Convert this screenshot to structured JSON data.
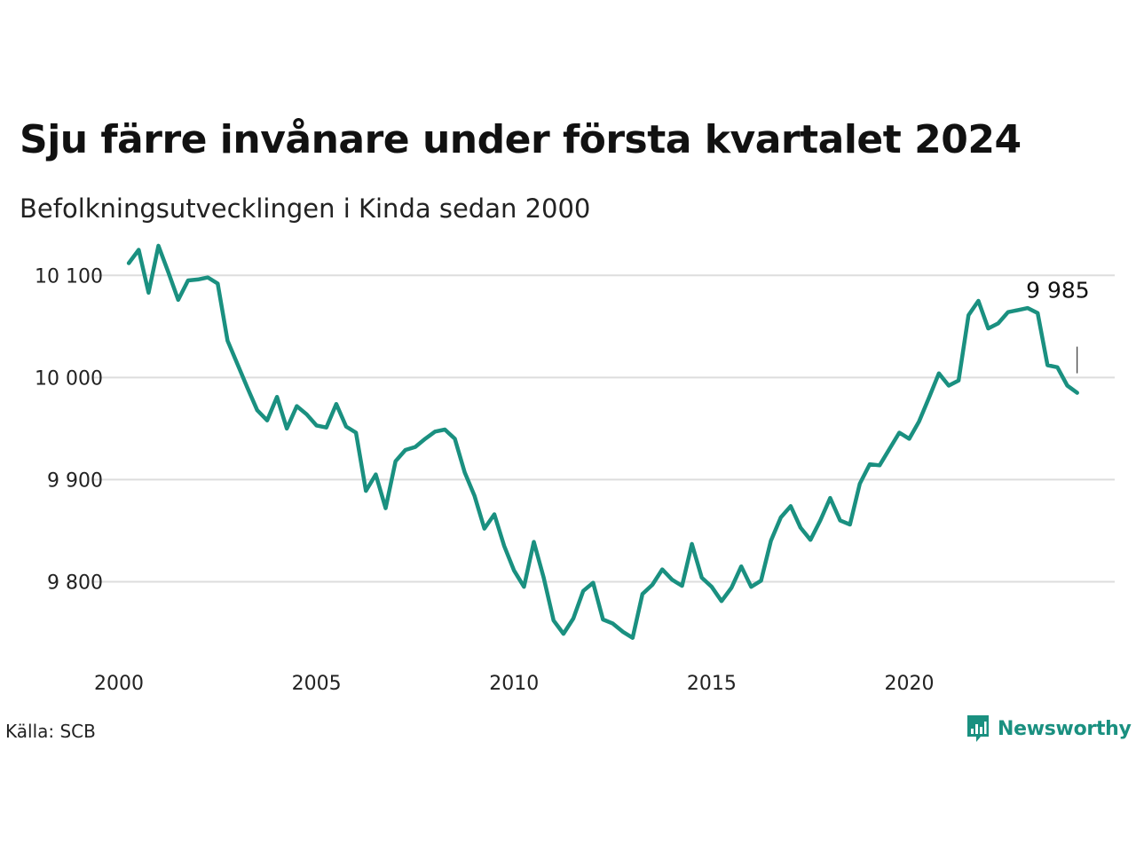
{
  "title": "Sju färre invånare under första kvartalet 2024",
  "subtitle": "Befolkningsutvecklingen i Kinda sedan 2000",
  "source": "Källa: SCB",
  "brand": {
    "name": "Newsworthy",
    "icon": "newsworthy-logo-icon"
  },
  "colors": {
    "line": "#1a9080",
    "grid": "#dddddd",
    "text": "#111111",
    "brand": "#1a9080"
  },
  "chart_data": {
    "type": "line",
    "title": "Sju färre invånare under första kvartalet 2024",
    "subtitle": "Befolkningsutvecklingen i Kinda sedan 2000",
    "xlabel": "",
    "ylabel": "",
    "xlim": [
      2000,
      2025.2
    ],
    "ylim": [
      9730,
      10135
    ],
    "grid": true,
    "x_ticks": [
      2000,
      2005,
      2010,
      2015,
      2020
    ],
    "x_tick_labels": [
      "2000",
      "2005",
      "2010",
      "2015",
      "2020"
    ],
    "y_ticks": [
      9800,
      9900,
      10000,
      10100
    ],
    "y_tick_labels": [
      "9 800",
      "9 900",
      "10 000",
      "10 100"
    ],
    "series": [
      {
        "x": [
          2000.25,
          2000.5,
          2000.75,
          2001.0,
          2001.25,
          2001.5,
          2001.75,
          2002.0,
          2002.25,
          2002.5,
          2002.75,
          2003.0,
          2003.25,
          2003.5,
          2003.75,
          2004.0,
          2004.25,
          2004.5,
          2004.75,
          2005.0,
          2005.25,
          2005.5,
          2005.75,
          2006.0,
          2006.25,
          2006.5,
          2006.75,
          2007.0,
          2007.25,
          2007.5,
          2007.75,
          2008.0,
          2008.25,
          2008.5,
          2008.75,
          2009.0,
          2009.25,
          2009.5,
          2009.75,
          2010.0,
          2010.25,
          2010.5,
          2010.75,
          2011.0,
          2011.25,
          2011.5,
          2011.75,
          2012.0,
          2012.25,
          2012.5,
          2012.75,
          2013.0,
          2013.25,
          2013.5,
          2013.75,
          2014.0,
          2014.25,
          2014.5,
          2014.75,
          2015.0,
          2015.25,
          2015.5,
          2015.75,
          2016.0,
          2016.25,
          2016.5,
          2016.75,
          2017.0,
          2017.25,
          2017.5,
          2017.75,
          2018.0,
          2018.25,
          2018.5,
          2018.75,
          2019.0,
          2019.25,
          2019.5,
          2019.75,
          2020.0,
          2020.25,
          2020.5,
          2020.75,
          2021.0,
          2021.25,
          2021.5,
          2021.75,
          2022.0,
          2022.25,
          2022.5,
          2022.75,
          2023.0,
          2023.25,
          2023.5,
          2023.75,
          2024.0,
          2024.25
        ],
        "values": [
          10112,
          10125,
          10083,
          10129,
          10103,
          10076,
          10095,
          10096,
          10098,
          10092,
          10036,
          10013,
          9990,
          9968,
          9958,
          9981,
          9950,
          9972,
          9964,
          9953,
          9951,
          9974,
          9952,
          9946,
          9889,
          9905,
          9872,
          9918,
          9929,
          9932,
          9940,
          9947,
          9949,
          9940,
          9907,
          9884,
          9852,
          9866,
          9835,
          9811,
          9795,
          9839,
          9804,
          9762,
          9749,
          9764,
          9791,
          9799,
          9763,
          9759,
          9751,
          9745,
          9788,
          9797,
          9812,
          9802,
          9796,
          9837,
          9804,
          9795,
          9781,
          9794,
          9815,
          9795,
          9801,
          9840,
          9863,
          9874,
          9853,
          9841,
          9860,
          9882,
          9860,
          9856,
          9896,
          9915,
          9914,
          9930,
          9946,
          9940,
          9957,
          9980,
          10004,
          9992,
          9997,
          10061,
          10075,
          10048,
          10053,
          10064,
          10066,
          10068,
          10063,
          10012,
          10010,
          9992,
          9985
        ]
      }
    ],
    "annotations": [
      {
        "x": 2024.25,
        "y": 9985,
        "label": "9 985"
      }
    ]
  }
}
